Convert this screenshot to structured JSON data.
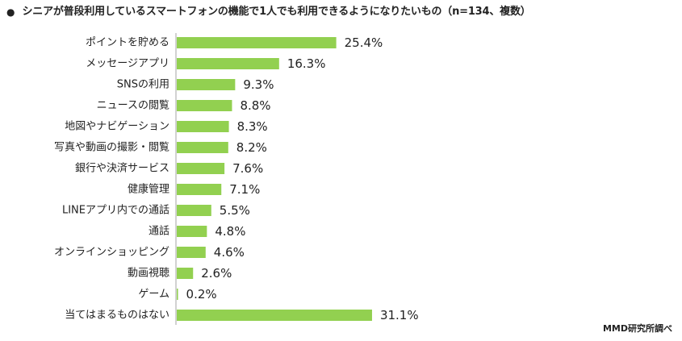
{
  "header": {
    "bullet": "●",
    "title": "シニアが普段利用しているスマートフォンの機能で1人でも利用できるようになりたいもの（n=134、複数）"
  },
  "footer": {
    "credit": "MMD研究所調べ"
  },
  "colors": {
    "bar": "#92d050",
    "axis": "#a6a6a6",
    "text": "#222222"
  },
  "chart_data": {
    "type": "bar",
    "orientation": "horizontal",
    "value_suffix": "%",
    "categories": [
      "ポイントを貯める",
      "メッセージアプリ",
      "SNSの利用",
      "ニュースの閲覧",
      "地図やナビゲーション",
      "写真や動画の撮影・閲覧",
      "銀行や決済サービス",
      "健康管理",
      "LINEアプリ内での通話",
      "通話",
      "オンラインショッピング",
      "動画視聴",
      "ゲーム",
      "当てはまるものはない"
    ],
    "values": [
      25.4,
      16.3,
      9.3,
      8.8,
      8.3,
      8.2,
      7.6,
      7.1,
      5.5,
      4.8,
      4.6,
      2.6,
      0.2,
      31.1
    ],
    "value_labels": [
      "25.4%",
      "16.3%",
      "9.3%",
      "8.8%",
      "8.3%",
      "8.2%",
      "7.6%",
      "7.1%",
      "5.5%",
      "4.8%",
      "4.6%",
      "2.6%",
      "0.2%",
      "31.1%"
    ],
    "xlim": [
      0,
      100
    ],
    "grid": false,
    "legend": false
  }
}
